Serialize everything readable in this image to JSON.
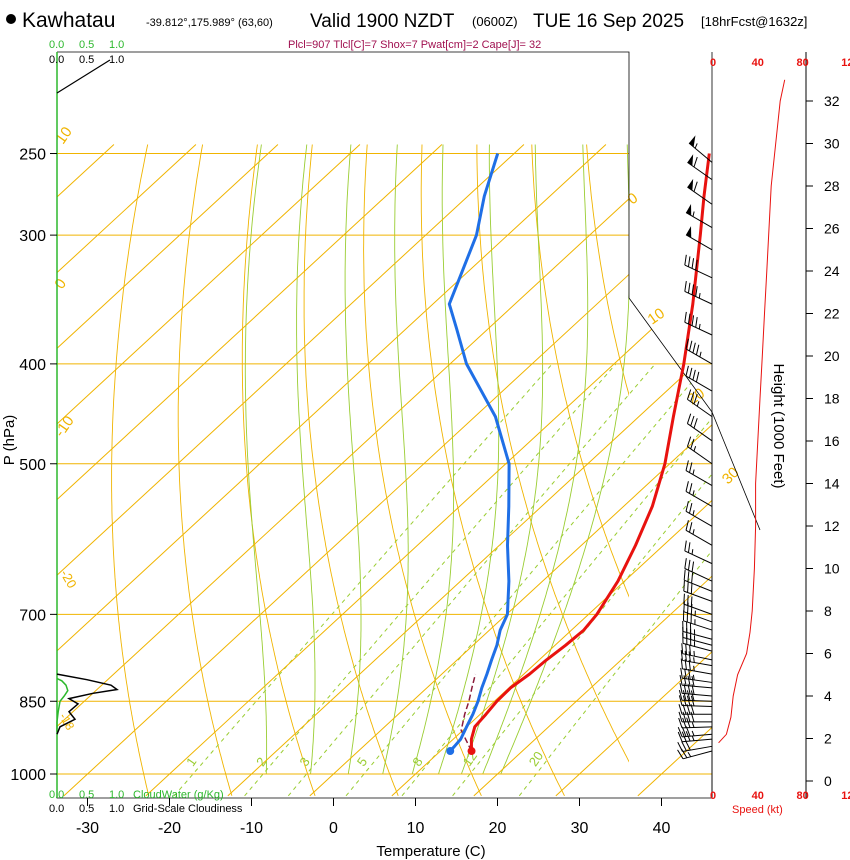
{
  "header": {
    "location": "Kawhatau",
    "coords": "-39.812°,175.989° (63,60)",
    "valid": "Valid 1900 NZDT",
    "zulu": "(0600Z)",
    "date": "TUE 16 Sep 2025",
    "forecast": "[18hrFcst@1632z]",
    "indices": "Plcl=907 Tlcl[C]=7 Shox=7 Pwat[cm]=2 Cape[J]= 32"
  },
  "colors": {
    "temperature": "#e8120f",
    "dewpoint": "#1f6fe6",
    "isotherm": "#f0b400",
    "dry_adiabat": "#f0b400",
    "moist_adiabat": "#9acd32",
    "mixing_ratio": "#9acd32",
    "cloud": "#2db82d",
    "wind": "#000000",
    "speed": "#e8120f"
  },
  "chart_data": {
    "type": "skew-t",
    "title": "Kawhatau Valid 1900 NZDT (0600Z) TUE 16 Sep 2025",
    "xlabel": "Temperature (C)",
    "ylabel": "P (hPa)",
    "y2label": "Height (1000 Feet)",
    "x_ticks": [
      "-30",
      "-20",
      "-10",
      "0",
      "10",
      "20",
      "30",
      "40"
    ],
    "x_tick_values": [
      -30,
      -20,
      -10,
      0,
      10,
      20,
      30,
      40
    ],
    "p_ticks": [
      "250",
      "300",
      "400",
      "500",
      "700",
      "850",
      "1000"
    ],
    "p_tick_values": [
      250,
      300,
      400,
      500,
      700,
      850,
      1000
    ],
    "height_ticks": [
      "0",
      "2",
      "4",
      "6",
      "8",
      "10",
      "12",
      "14",
      "16",
      "18",
      "20",
      "22",
      "24",
      "26",
      "28",
      "30",
      "32"
    ],
    "height_tick_values": [
      0,
      2,
      4,
      6,
      8,
      10,
      12,
      14,
      16,
      18,
      20,
      22,
      24,
      26,
      28,
      30,
      32
    ],
    "isotherm_labels": [
      "-10",
      "0",
      "10",
      "20",
      "30",
      "0",
      "10",
      "20",
      "30"
    ],
    "mixing_ratio_labels": [
      "1",
      "2",
      "3",
      "5",
      "8",
      "12",
      "20"
    ],
    "mixing_ratio_values": [
      1,
      2,
      3,
      5,
      8,
      12,
      20
    ],
    "moist_adiabat_thetae_k": [
      270,
      278,
      286,
      294,
      302,
      310,
      318,
      326,
      334
    ],
    "dry_adiabat_theta_k": [
      250,
      260,
      270,
      280,
      290,
      300,
      310,
      320,
      330,
      340,
      350,
      360,
      370,
      380,
      390,
      400,
      410
    ],
    "series": [
      {
        "name": "Temperature",
        "p": [
          950,
          925,
          900,
          875,
          850,
          825,
          800,
          775,
          750,
          725,
          700,
          650,
          600,
          550,
          500,
          450,
          400,
          350,
          300,
          275,
          250
        ],
        "t": [
          13.8,
          12.2,
          11.0,
          10.7,
          10.3,
          10.2,
          10.7,
          10.9,
          11.3,
          11.5,
          11.0,
          9.2,
          6.6,
          3.5,
          -0.6,
          -5.8,
          -11.5,
          -18.3,
          -26.5,
          -31.2,
          -36.2
        ]
      },
      {
        "name": "Dewpoint",
        "p": [
          950,
          940,
          925,
          900,
          875,
          850,
          825,
          800,
          775,
          750,
          725,
          700,
          650,
          600,
          550,
          500,
          450,
          400,
          370,
          350,
          300,
          275,
          250
        ],
        "t": [
          11.2,
          11.1,
          10.9,
          10.0,
          9.1,
          8.0,
          6.7,
          5.5,
          4.2,
          2.9,
          1.3,
          0.1,
          -4.1,
          -9.0,
          -14.0,
          -19.6,
          -27.5,
          -38.0,
          -43.8,
          -48.0,
          -53.8,
          -58.0,
          -62.0
        ]
      },
      {
        "name": "Parcel",
        "p": [
          950,
          907,
          875,
          850,
          825,
          800
        ],
        "t": [
          13.8,
          9.8,
          8.1,
          6.9,
          5.5,
          4.1
        ]
      }
    ],
    "cloud_water": {
      "label": "CloudWater (g/Kg)",
      "ticks": [
        "0.0",
        "0.5",
        "1.0"
      ],
      "p": [
        808,
        812,
        820,
        830,
        840,
        850,
        870,
        890,
        910
      ],
      "values": [
        0.0,
        0.08,
        0.15,
        0.18,
        0.12,
        0.05,
        0.02,
        0.0,
        0.0
      ]
    },
    "cloudiness": {
      "label": "Grid-Scale Cloudiness",
      "ticks": [
        "0.0",
        "0.5",
        "1.0"
      ],
      "p": [
        800,
        810,
        820,
        828,
        835,
        845,
        855,
        870,
        885,
        900,
        915
      ],
      "values": [
        0.0,
        0.5,
        0.9,
        1.0,
        0.6,
        0.2,
        0.35,
        0.2,
        0.3,
        0.05,
        0.0
      ]
    },
    "wind": {
      "p": [
        950,
        940,
        925,
        915,
        900,
        890,
        875,
        860,
        850,
        840,
        825,
        815,
        800,
        785,
        775,
        760,
        750,
        740,
        725,
        712,
        700,
        680,
        665,
        650,
        625,
        600,
        575,
        550,
        525,
        500,
        475,
        450,
        425,
        400,
        375,
        350,
        330,
        310,
        295,
        280,
        265,
        255
      ],
      "dir_deg": [
        255,
        260,
        265,
        265,
        268,
        270,
        270,
        272,
        272,
        275,
        275,
        278,
        280,
        280,
        282,
        285,
        285,
        285,
        288,
        290,
        290,
        290,
        292,
        295,
        295,
        300,
        300,
        300,
        300,
        305,
        305,
        305,
        300,
        300,
        295,
        295,
        295,
        300,
        300,
        305,
        305,
        310
      ],
      "spd_kt": [
        25,
        30,
        35,
        38,
        38,
        40,
        40,
        40,
        40,
        40,
        40,
        38,
        38,
        38,
        38,
        35,
        35,
        35,
        35,
        35,
        30,
        30,
        30,
        30,
        25,
        25,
        25,
        25,
        25,
        25,
        30,
        35,
        40,
        45,
        45,
        45,
        40,
        50,
        55,
        60,
        60,
        55
      ]
    },
    "speed_profile": {
      "label": "Speed (kt)",
      "ticks": [
        "0",
        "40",
        "80",
        "12"
      ],
      "height_kft": [
        1.8,
        2.2,
        3.0,
        4.0,
        5.0,
        6.0,
        7.0,
        8.0,
        9.0,
        10.0,
        12.0,
        14.0,
        16.0,
        18.0,
        20.0,
        22.0,
        24.0,
        26.0,
        28.0,
        30.0,
        32.0,
        33.0
      ],
      "spd_kt": [
        5,
        12,
        16,
        18,
        22,
        30,
        33,
        35,
        36,
        37,
        38,
        38,
        40,
        42,
        44,
        46,
        48,
        50,
        52,
        56,
        60,
        64
      ]
    }
  }
}
